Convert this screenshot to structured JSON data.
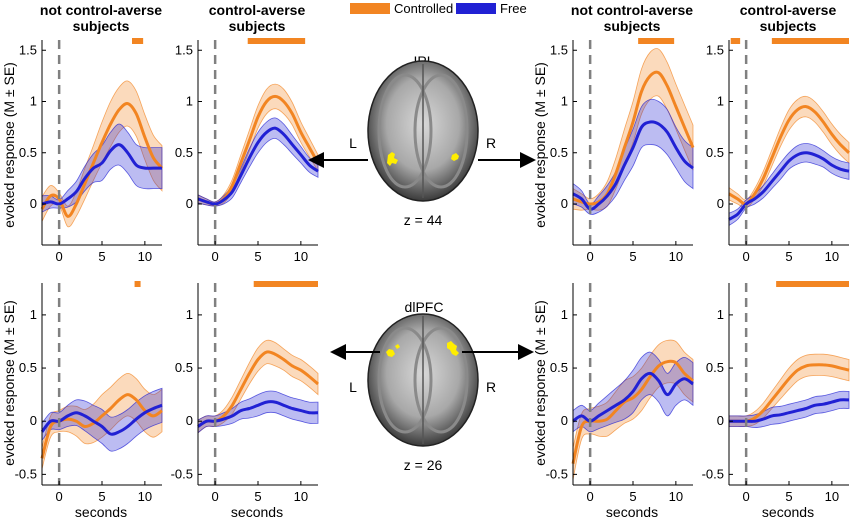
{
  "colors": {
    "controlled": "#F28522",
    "free": "#2121D4",
    "sig_bar": "#F28522"
  },
  "legend": [
    {
      "label": "Controlled",
      "color": "#F28522"
    },
    {
      "label": "Free",
      "color": "#2121D4"
    }
  ],
  "column_titles": {
    "not_averse": [
      "not control-averse",
      "subjects"
    ],
    "averse": [
      "control-averse",
      "subjects"
    ]
  },
  "axis_labels": {
    "ylabel": "evoked response (M ± SE)",
    "xlabel": "seconds"
  },
  "brain": {
    "top": {
      "region": "IPL",
      "left": "L",
      "right": "R",
      "z": "z = 44"
    },
    "bottom": {
      "region": "dlPFC",
      "left": "L",
      "right": "R",
      "z": "z = 26"
    }
  },
  "chart_data": [
    {
      "type": "line",
      "region": "IPL",
      "group": "not control-averse subjects",
      "xlim": [
        -2,
        12
      ],
      "ylim": [
        -0.4,
        1.6
      ],
      "xticks": [
        0,
        5,
        10
      ],
      "yticks": [
        0,
        0.5,
        1,
        1.5
      ],
      "x": [
        -2,
        -1,
        0,
        1,
        2,
        3,
        4,
        5,
        6,
        7,
        8,
        9,
        10,
        11,
        12
      ],
      "significance": [
        [
          8.5,
          9.8
        ]
      ],
      "series": [
        {
          "name": "Controlled",
          "mean": [
            -0.05,
            0.08,
            0.05,
            -0.12,
            0.0,
            0.2,
            0.4,
            0.6,
            0.78,
            0.92,
            0.98,
            0.88,
            0.65,
            0.45,
            0.35
          ],
          "se": [
            0.12,
            0.1,
            0.06,
            0.1,
            0.12,
            0.15,
            0.17,
            0.2,
            0.22,
            0.22,
            0.22,
            0.22,
            0.22,
            0.22,
            0.22
          ]
        },
        {
          "name": "Free",
          "mean": [
            0.0,
            0.02,
            0.0,
            0.05,
            0.12,
            0.25,
            0.35,
            0.4,
            0.52,
            0.58,
            0.5,
            0.38,
            0.35,
            0.35,
            0.35
          ],
          "se": [
            0.08,
            0.06,
            0.04,
            0.08,
            0.1,
            0.12,
            0.14,
            0.17,
            0.18,
            0.2,
            0.2,
            0.2,
            0.2,
            0.2,
            0.2
          ]
        }
      ]
    },
    {
      "type": "line",
      "region": "IPL",
      "group": "control-averse subjects",
      "xlim": [
        -2,
        12
      ],
      "ylim": [
        -0.4,
        1.6
      ],
      "xticks": [
        0,
        5,
        10
      ],
      "yticks": [
        0,
        0.5,
        1,
        1.5
      ],
      "x": [
        -2,
        -1,
        0,
        1,
        2,
        3,
        4,
        5,
        6,
        7,
        8,
        9,
        10,
        11,
        12
      ],
      "significance": [
        [
          3.8,
          10.5
        ]
      ],
      "series": [
        {
          "name": "Controlled",
          "mean": [
            0.05,
            0.02,
            0.0,
            0.05,
            0.18,
            0.4,
            0.62,
            0.85,
            1.0,
            1.05,
            1.0,
            0.88,
            0.7,
            0.55,
            0.4
          ],
          "se": [
            0.04,
            0.03,
            0.02,
            0.04,
            0.06,
            0.08,
            0.1,
            0.11,
            0.12,
            0.12,
            0.12,
            0.11,
            0.1,
            0.09,
            0.08
          ]
        },
        {
          "name": "Free",
          "mean": [
            0.05,
            0.02,
            0.0,
            0.04,
            0.12,
            0.28,
            0.45,
            0.6,
            0.7,
            0.74,
            0.68,
            0.58,
            0.48,
            0.38,
            0.32
          ],
          "se": [
            0.04,
            0.03,
            0.02,
            0.04,
            0.06,
            0.07,
            0.09,
            0.1,
            0.1,
            0.1,
            0.1,
            0.09,
            0.08,
            0.07,
            0.06
          ]
        }
      ]
    },
    {
      "type": "line",
      "region": "IPL",
      "group": "not control-averse subjects",
      "xlim": [
        -2,
        12
      ],
      "ylim": [
        -0.4,
        1.6
      ],
      "xticks": [
        0,
        5,
        10
      ],
      "yticks": [
        0,
        0.5,
        1,
        1.5
      ],
      "x": [
        -2,
        -1,
        0,
        1,
        2,
        3,
        4,
        5,
        6,
        7,
        8,
        9,
        10,
        11,
        12
      ],
      "significance": [
        [
          5.6,
          9.8
        ]
      ],
      "series": [
        {
          "name": "Controlled",
          "mean": [
            0.05,
            0.02,
            0.0,
            0.02,
            0.1,
            0.3,
            0.55,
            0.8,
            1.1,
            1.25,
            1.28,
            1.15,
            0.95,
            0.75,
            0.55
          ],
          "se": [
            0.1,
            0.08,
            0.05,
            0.08,
            0.12,
            0.15,
            0.18,
            0.2,
            0.22,
            0.23,
            0.23,
            0.23,
            0.22,
            0.22,
            0.22
          ]
        },
        {
          "name": "Free",
          "mean": [
            0.1,
            0.05,
            -0.05,
            0.0,
            0.08,
            0.2,
            0.38,
            0.55,
            0.75,
            0.8,
            0.78,
            0.7,
            0.55,
            0.42,
            0.35
          ],
          "se": [
            0.1,
            0.08,
            0.05,
            0.08,
            0.1,
            0.12,
            0.15,
            0.18,
            0.2,
            0.22,
            0.22,
            0.22,
            0.2,
            0.2,
            0.2
          ]
        }
      ]
    },
    {
      "type": "line",
      "region": "IPL",
      "group": "control-averse subjects",
      "xlim": [
        -2,
        12
      ],
      "ylim": [
        -0.4,
        1.6
      ],
      "xticks": [
        0,
        5,
        10
      ],
      "yticks": [
        0,
        0.5,
        1,
        1.5
      ],
      "x": [
        -2,
        -1,
        0,
        1,
        2,
        3,
        4,
        5,
        6,
        7,
        8,
        9,
        10,
        11,
        12
      ],
      "significance": [
        [
          -1.8,
          -0.7
        ],
        [
          3.0,
          12.0
        ]
      ],
      "series": [
        {
          "name": "Controlled",
          "mean": [
            0.1,
            0.05,
            0.0,
            0.1,
            0.25,
            0.45,
            0.65,
            0.82,
            0.92,
            0.95,
            0.9,
            0.8,
            0.68,
            0.58,
            0.5
          ],
          "se": [
            0.06,
            0.05,
            0.04,
            0.05,
            0.07,
            0.08,
            0.09,
            0.1,
            0.1,
            0.1,
            0.1,
            0.1,
            0.1,
            0.1,
            0.1
          ]
        },
        {
          "name": "Free",
          "mean": [
            -0.15,
            -0.1,
            0.0,
            0.05,
            0.12,
            0.22,
            0.32,
            0.42,
            0.48,
            0.5,
            0.48,
            0.44,
            0.38,
            0.34,
            0.32
          ],
          "se": [
            0.06,
            0.05,
            0.04,
            0.05,
            0.06,
            0.07,
            0.08,
            0.08,
            0.09,
            0.09,
            0.09,
            0.08,
            0.08,
            0.08,
            0.08
          ]
        }
      ]
    },
    {
      "type": "line",
      "region": "dlPFC",
      "group": "not control-averse subjects",
      "xlim": [
        -2,
        12
      ],
      "ylim": [
        -0.6,
        1.3
      ],
      "xticks": [
        0,
        5,
        10
      ],
      "yticks": [
        -0.5,
        0,
        0.5,
        1
      ],
      "x": [
        -2,
        -1,
        0,
        1,
        2,
        3,
        4,
        5,
        6,
        7,
        8,
        9,
        10,
        11,
        12
      ],
      "significance": [
        [
          8.8,
          9.5
        ]
      ],
      "series": [
        {
          "name": "Controlled",
          "mean": [
            -0.35,
            -0.05,
            0.0,
            0.02,
            0.0,
            -0.05,
            -0.02,
            0.05,
            0.12,
            0.2,
            0.25,
            0.2,
            0.1,
            0.05,
            0.1
          ],
          "se": [
            0.1,
            0.1,
            0.1,
            0.12,
            0.14,
            0.16,
            0.18,
            0.2,
            0.2,
            0.2,
            0.2,
            0.2,
            0.2,
            0.2,
            0.2
          ]
        },
        {
          "name": "Free",
          "mean": [
            -0.1,
            0.0,
            0.0,
            0.05,
            0.08,
            0.05,
            0.0,
            -0.05,
            -0.12,
            -0.1,
            -0.05,
            0.02,
            0.08,
            0.12,
            0.15
          ],
          "se": [
            0.08,
            0.08,
            0.08,
            0.1,
            0.12,
            0.14,
            0.15,
            0.16,
            0.16,
            0.16,
            0.16,
            0.16,
            0.16,
            0.16,
            0.16
          ]
        }
      ]
    },
    {
      "type": "line",
      "region": "dlPFC",
      "group": "control-averse subjects",
      "xlim": [
        -2,
        12
      ],
      "ylim": [
        -0.6,
        1.3
      ],
      "xticks": [
        0,
        5,
        10
      ],
      "yticks": [
        -0.5,
        0,
        0.5,
        1
      ],
      "x": [
        -2,
        -1,
        0,
        1,
        2,
        3,
        4,
        5,
        6,
        7,
        8,
        9,
        10,
        11,
        12
      ],
      "significance": [
        [
          4.5,
          12.0
        ]
      ],
      "series": [
        {
          "name": "Controlled",
          "mean": [
            -0.05,
            0.0,
            0.0,
            0.05,
            0.15,
            0.3,
            0.45,
            0.58,
            0.65,
            0.63,
            0.58,
            0.52,
            0.48,
            0.42,
            0.35
          ],
          "se": [
            0.06,
            0.05,
            0.05,
            0.06,
            0.08,
            0.09,
            0.1,
            0.11,
            0.11,
            0.11,
            0.1,
            0.1,
            0.1,
            0.1,
            0.1
          ]
        },
        {
          "name": "Free",
          "mean": [
            -0.05,
            0.0,
            0.0,
            0.02,
            0.05,
            0.1,
            0.12,
            0.15,
            0.18,
            0.18,
            0.15,
            0.12,
            0.1,
            0.08,
            0.08
          ],
          "se": [
            0.06,
            0.05,
            0.05,
            0.06,
            0.07,
            0.08,
            0.09,
            0.1,
            0.1,
            0.1,
            0.1,
            0.1,
            0.1,
            0.1,
            0.1
          ]
        }
      ]
    },
    {
      "type": "line",
      "region": "dlPFC",
      "group": "not control-averse subjects",
      "xlim": [
        -2,
        12
      ],
      "ylim": [
        -0.6,
        1.3
      ],
      "xticks": [
        0,
        5,
        10
      ],
      "yticks": [
        -0.5,
        0,
        0.5,
        1
      ],
      "x": [
        -2,
        -1,
        0,
        1,
        2,
        3,
        4,
        5,
        6,
        7,
        8,
        9,
        10,
        11,
        12
      ],
      "significance": [],
      "series": [
        {
          "name": "Controlled",
          "mean": [
            -0.4,
            -0.05,
            0.0,
            0.0,
            0.02,
            0.1,
            0.18,
            0.22,
            0.3,
            0.42,
            0.52,
            0.56,
            0.55,
            0.45,
            0.38
          ],
          "se": [
            0.15,
            0.12,
            0.12,
            0.14,
            0.16,
            0.18,
            0.2,
            0.2,
            0.2,
            0.2,
            0.2,
            0.2,
            0.2,
            0.2,
            0.2
          ]
        },
        {
          "name": "Free",
          "mean": [
            0.0,
            0.05,
            0.0,
            0.05,
            0.1,
            0.15,
            0.2,
            0.28,
            0.4,
            0.45,
            0.38,
            0.25,
            0.35,
            0.4,
            0.35
          ],
          "se": [
            0.1,
            0.1,
            0.1,
            0.12,
            0.14,
            0.16,
            0.18,
            0.2,
            0.2,
            0.2,
            0.2,
            0.2,
            0.2,
            0.2,
            0.2
          ]
        }
      ]
    },
    {
      "type": "line",
      "region": "dlPFC",
      "group": "control-averse subjects",
      "xlim": [
        -2,
        12
      ],
      "ylim": [
        -0.6,
        1.3
      ],
      "xticks": [
        0,
        5,
        10
      ],
      "yticks": [
        -0.5,
        0,
        0.5,
        1
      ],
      "x": [
        -2,
        -1,
        0,
        1,
        2,
        3,
        4,
        5,
        6,
        7,
        8,
        9,
        10,
        11,
        12
      ],
      "significance": [
        [
          3.5,
          12.0
        ]
      ],
      "series": [
        {
          "name": "Controlled",
          "mean": [
            0.0,
            0.0,
            0.0,
            0.03,
            0.1,
            0.2,
            0.3,
            0.4,
            0.48,
            0.52,
            0.53,
            0.53,
            0.52,
            0.5,
            0.48
          ],
          "se": [
            0.05,
            0.05,
            0.05,
            0.06,
            0.07,
            0.08,
            0.09,
            0.1,
            0.1,
            0.1,
            0.1,
            0.1,
            0.1,
            0.1,
            0.1
          ]
        },
        {
          "name": "Free",
          "mean": [
            0.0,
            0.0,
            0.0,
            0.0,
            0.02,
            0.05,
            0.06,
            0.08,
            0.1,
            0.12,
            0.15,
            0.16,
            0.18,
            0.2,
            0.2
          ],
          "se": [
            0.05,
            0.05,
            0.05,
            0.06,
            0.07,
            0.08,
            0.08,
            0.08,
            0.08,
            0.08,
            0.08,
            0.08,
            0.08,
            0.08,
            0.08
          ]
        }
      ]
    }
  ]
}
